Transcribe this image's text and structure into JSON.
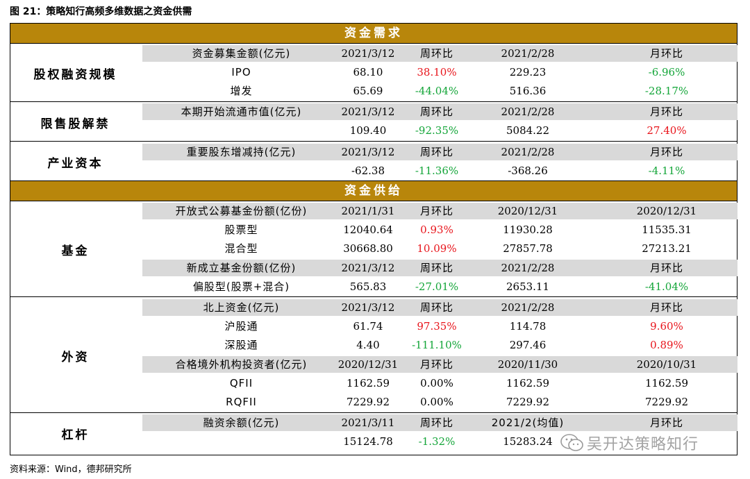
{
  "figure_title": "图 21：策略知行高频多维数据之资金供需",
  "demand_header": "资金需求",
  "supply_header": "资金供给",
  "demand": [
    {
      "category": "股权融资规模",
      "rows": [
        {
          "cells": [
            "资金募集金额(亿元)",
            "2021/3/12",
            "周环比",
            "2021/2/28",
            "月环比"
          ],
          "header": true
        },
        {
          "cells": [
            "IPO",
            "68.10",
            "38.10%",
            "229.23",
            "-6.96%"
          ]
        },
        {
          "cells": [
            "增发",
            "65.69",
            "-44.04%",
            "516.36",
            "-28.17%"
          ]
        }
      ]
    },
    {
      "category": "限售股解禁",
      "rows": [
        {
          "cells": [
            "本期开始流通市值(亿元)",
            "2021/3/12",
            "周环比",
            "2021/2/28",
            "月环比"
          ],
          "header": true
        },
        {
          "cells": [
            "",
            "109.40",
            "-92.35%",
            "5084.22",
            "27.40%"
          ]
        }
      ]
    },
    {
      "category": "产业资本",
      "rows": [
        {
          "cells": [
            "重要股东增减持(亿元)",
            "2021/3/12",
            "周环比",
            "2021/2/28",
            "月环比"
          ],
          "header": true
        },
        {
          "cells": [
            "",
            "-62.38",
            "-11.36%",
            "-368.26",
            "-4.11%"
          ]
        }
      ]
    }
  ],
  "supply": [
    {
      "category": "基金",
      "rows": [
        {
          "cells": [
            "开放式公募基金份额(亿份)",
            "2021/1/31",
            "月环比",
            "2020/12/31",
            "2020/12/31"
          ],
          "header": true
        },
        {
          "cells": [
            "股票型",
            "12040.64",
            "0.93%",
            "11930.28",
            "11535.31"
          ]
        },
        {
          "cells": [
            "混合型",
            "30668.80",
            "10.09%",
            "27857.78",
            "27213.21"
          ]
        },
        {
          "cells": [
            "新成立基金份额(亿份)",
            "2021/3/12",
            "周环比",
            "2021/2/28",
            "月环比"
          ],
          "header": true
        },
        {
          "cells": [
            "偏股型(股票+混合)",
            "565.83",
            "-27.01%",
            "2653.11",
            "-41.04%"
          ]
        }
      ]
    },
    {
      "category": "外资",
      "rows": [
        {
          "cells": [
            "北上资金(亿元)",
            "2021/3/12",
            "周环比",
            "2021/2/28",
            "月环比"
          ],
          "header": true
        },
        {
          "cells": [
            "沪股通",
            "61.74",
            "97.35%",
            "114.78",
            "9.60%"
          ]
        },
        {
          "cells": [
            "深股通",
            "4.40",
            "-111.10%",
            "297.46",
            "0.89%"
          ]
        },
        {
          "cells": [
            "合格境外机构投资者(亿元)",
            "2020/12/31",
            "月环比",
            "2020/11/30",
            "2020/10/31"
          ],
          "header": true
        },
        {
          "cells": [
            "QFII",
            "1162.59",
            "0.00%",
            "1162.59",
            "1162.59"
          ]
        },
        {
          "cells": [
            "RQFII",
            "7229.92",
            "0.00%",
            "7229.92",
            "7229.92"
          ]
        }
      ]
    },
    {
      "category": "杠杆",
      "rows": [
        {
          "cells": [
            "融资余额(亿元)",
            "2021/3/11",
            "周环比",
            "2021/2(均值)",
            "月环比"
          ],
          "header": true
        },
        {
          "cells": [
            "",
            "15124.78",
            "-1.32%",
            "15283.24",
            ""
          ]
        }
      ]
    }
  ],
  "colors": {
    "gold": "#B8860B",
    "grey": "#D9D9D9",
    "positive": "#E8141B",
    "negative": "#13A538"
  },
  "source": "资料来源：Wind，德邦研究所",
  "watermark": "吴开达策略知行",
  "watermark_icon": "wechat-icon"
}
